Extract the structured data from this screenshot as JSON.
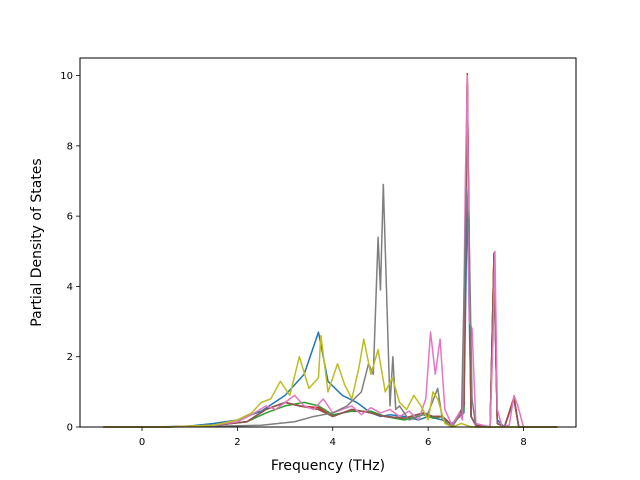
{
  "chart_data": {
    "type": "line",
    "title": "",
    "xlabel": "Frequency (THz)",
    "ylabel": "Partial Density of States",
    "xlim": [
      -1.3,
      9.1
    ],
    "ylim": [
      0,
      10.5
    ],
    "xticks": [
      0,
      2,
      4,
      6,
      8
    ],
    "yticks": [
      0,
      2,
      4,
      6,
      8,
      10
    ],
    "grid": false,
    "legend": "none",
    "series": [
      {
        "color": "#1f77b4",
        "x": [
          -0.8,
          0.3,
          1.0,
          1.5,
          2.0,
          2.5,
          3.0,
          3.4,
          3.7,
          3.9,
          4.2,
          4.5,
          4.8,
          5.0,
          5.2,
          5.5,
          5.8,
          6.0,
          6.3,
          6.5,
          6.75,
          6.82,
          6.9,
          7.0,
          7.3,
          7.38,
          7.45,
          7.6,
          7.8,
          7.9,
          8.7
        ],
        "y": [
          0,
          0,
          0.03,
          0.1,
          0.2,
          0.45,
          0.9,
          1.5,
          2.7,
          1.3,
          0.9,
          0.7,
          0.4,
          0.3,
          0.35,
          0.3,
          0.2,
          0.3,
          0.2,
          0.1,
          0.4,
          6.5,
          0.3,
          0.05,
          0.0,
          4.5,
          0.2,
          0.0,
          0.8,
          0.0,
          0
        ]
      },
      {
        "color": "#ff7f0e",
        "x": [
          -0.8,
          0.5,
          1.5,
          2.2,
          2.6,
          3.0,
          3.3,
          3.7,
          4.0,
          4.4,
          4.8,
          5.1,
          5.5,
          5.9,
          6.1,
          6.3,
          6.5,
          6.75,
          6.82,
          6.9,
          7.0,
          7.3,
          7.38,
          7.45,
          7.6,
          7.8,
          7.9,
          8.7
        ],
        "y": [
          0,
          0,
          0.05,
          0.15,
          0.5,
          0.7,
          0.6,
          0.5,
          0.3,
          0.5,
          0.4,
          0.3,
          0.25,
          0.4,
          0.3,
          0.3,
          0.05,
          0.6,
          9.9,
          0.3,
          0.05,
          0.0,
          4.9,
          0.1,
          0.0,
          0.85,
          0.0,
          0
        ]
      },
      {
        "color": "#2ca02c",
        "x": [
          -0.8,
          0.5,
          1.5,
          2.2,
          2.6,
          3.0,
          3.4,
          3.7,
          4.0,
          4.4,
          4.8,
          5.1,
          5.5,
          5.9,
          6.1,
          6.3,
          6.5,
          6.75,
          6.82,
          6.9,
          7.0,
          7.3,
          7.38,
          7.45,
          7.6,
          7.8,
          7.9,
          8.7
        ],
        "y": [
          0,
          0,
          0.04,
          0.15,
          0.4,
          0.6,
          0.7,
          0.6,
          0.35,
          0.45,
          0.45,
          0.3,
          0.2,
          0.35,
          0.25,
          0.3,
          0.05,
          0.5,
          9.8,
          0.3,
          0.05,
          0.0,
          4.8,
          0.1,
          0.0,
          0.8,
          0.0,
          0
        ]
      },
      {
        "color": "#d62728",
        "x": [
          -0.8,
          0.5,
          1.5,
          2.2,
          2.6,
          3.0,
          3.3,
          3.7,
          4.0,
          4.4,
          4.8,
          5.1,
          5.5,
          5.9,
          6.1,
          6.3,
          6.5,
          6.75,
          6.82,
          6.9,
          7.0,
          7.3,
          7.38,
          7.45,
          7.6,
          7.8,
          7.9,
          8.7
        ],
        "y": [
          0,
          0,
          0.05,
          0.15,
          0.5,
          0.7,
          0.6,
          0.55,
          0.3,
          0.5,
          0.4,
          0.3,
          0.25,
          0.4,
          0.3,
          0.3,
          0.05,
          0.6,
          10.05,
          0.3,
          0.05,
          0.0,
          4.95,
          0.1,
          0.0,
          0.85,
          0.0,
          0
        ]
      },
      {
        "color": "#9467bd",
        "x": [
          -0.8,
          0.5,
          1.5,
          2.2,
          2.6,
          3.0,
          3.3,
          3.7,
          4.0,
          4.4,
          4.8,
          5.1,
          5.5,
          5.9,
          6.1,
          6.3,
          6.5,
          6.75,
          6.82,
          6.9,
          7.0,
          7.3,
          7.38,
          7.45,
          7.6,
          7.8,
          7.9,
          8.7
        ],
        "y": [
          0,
          0,
          0.05,
          0.15,
          0.5,
          0.7,
          0.6,
          0.5,
          0.3,
          0.5,
          0.4,
          0.3,
          0.25,
          0.4,
          0.3,
          0.3,
          0.05,
          0.6,
          9.7,
          0.3,
          0.05,
          0.0,
          4.7,
          0.1,
          0.0,
          0.8,
          0.0,
          0
        ]
      },
      {
        "color": "#8c564b",
        "x": [
          -0.8,
          0.5,
          1.5,
          2.2,
          2.6,
          3.0,
          3.3,
          3.7,
          4.0,
          4.4,
          4.8,
          5.1,
          5.5,
          5.9,
          6.1,
          6.3,
          6.5,
          6.75,
          6.82,
          6.9,
          7.0,
          7.3,
          7.38,
          7.45,
          7.6,
          7.8,
          7.9,
          8.7
        ],
        "y": [
          0,
          0,
          0.05,
          0.15,
          0.5,
          0.7,
          0.6,
          0.5,
          0.3,
          0.5,
          0.4,
          0.3,
          0.25,
          0.4,
          0.3,
          0.3,
          0.05,
          0.6,
          10.0,
          0.3,
          0.05,
          0.0,
          4.9,
          0.1,
          0.0,
          0.8,
          0.0,
          0
        ]
      },
      {
        "color": "#e377c2",
        "x": [
          -0.8,
          0.5,
          1.5,
          2.0,
          2.3,
          2.6,
          2.8,
          3.0,
          3.2,
          3.4,
          3.6,
          3.8,
          4.0,
          4.2,
          4.4,
          4.6,
          4.8,
          5.0,
          5.2,
          5.4,
          5.6,
          5.8,
          5.95,
          6.05,
          6.15,
          6.25,
          6.35,
          6.5,
          6.65,
          6.72,
          6.78,
          6.82,
          6.86,
          6.92,
          7.0,
          7.3,
          7.36,
          7.4,
          7.45,
          7.55,
          7.7,
          7.8,
          7.88,
          8.0,
          8.7
        ],
        "y": [
          0,
          0,
          0.05,
          0.15,
          0.35,
          0.6,
          0.5,
          0.7,
          0.9,
          0.6,
          0.5,
          0.8,
          0.4,
          0.5,
          0.6,
          0.35,
          0.55,
          0.4,
          0.5,
          0.3,
          0.45,
          0.2,
          0.8,
          2.7,
          1.5,
          2.5,
          0.5,
          0.05,
          0.4,
          0.2,
          7.0,
          10.0,
          3.0,
          2.8,
          0.1,
          0.0,
          2.5,
          5.0,
          0.5,
          0.0,
          0.05,
          0.9,
          0.6,
          0.0,
          0
        ]
      },
      {
        "color": "#7f7f7f",
        "x": [
          -0.8,
          0.5,
          1.5,
          2.5,
          3.2,
          3.6,
          4.0,
          4.3,
          4.6,
          4.75,
          4.85,
          4.95,
          5.0,
          5.06,
          5.12,
          5.2,
          5.26,
          5.32,
          5.4,
          5.6,
          5.8,
          6.0,
          6.2,
          6.3,
          6.5,
          6.7,
          6.8,
          6.86,
          6.92,
          7.0,
          7.2,
          7.4,
          7.6,
          8.7
        ],
        "y": [
          0,
          0,
          0.02,
          0.05,
          0.15,
          0.3,
          0.4,
          0.6,
          1.0,
          1.8,
          1.5,
          5.4,
          3.9,
          6.9,
          4.2,
          0.6,
          2.0,
          0.5,
          0.6,
          0.2,
          0.3,
          0.4,
          1.1,
          0.2,
          0.0,
          0.4,
          6.8,
          5.5,
          0.8,
          0.0,
          0.0,
          0.0,
          0.0,
          0
        ]
      },
      {
        "color": "#bcbd22",
        "x": [
          -0.8,
          0.5,
          1.5,
          2.0,
          2.3,
          2.5,
          2.7,
          2.9,
          3.1,
          3.3,
          3.5,
          3.7,
          3.75,
          3.9,
          4.1,
          4.25,
          4.4,
          4.55,
          4.65,
          4.8,
          4.95,
          5.1,
          5.25,
          5.4,
          5.55,
          5.7,
          5.85,
          6.0,
          6.1,
          6.2,
          6.35,
          6.5,
          6.7,
          6.9,
          7.0,
          8.7
        ],
        "y": [
          0,
          0,
          0.05,
          0.2,
          0.4,
          0.7,
          0.8,
          1.3,
          0.9,
          2.0,
          1.1,
          1.4,
          2.6,
          1.0,
          1.8,
          1.2,
          0.8,
          1.7,
          2.5,
          1.5,
          2.2,
          1.0,
          1.4,
          0.7,
          0.5,
          0.9,
          0.6,
          0.2,
          1.0,
          0.8,
          0.1,
          0.0,
          0.1,
          0.0,
          0.0,
          0
        ]
      }
    ]
  }
}
